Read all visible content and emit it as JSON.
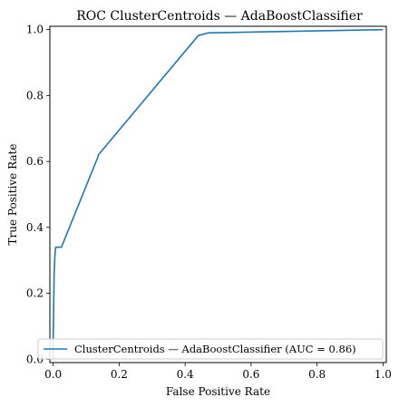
{
  "chart_data": {
    "type": "line",
    "title": "ROC ClusterCentroids — AdaBoostClassifier",
    "xlabel": "False Positive Rate",
    "ylabel": "True Positive Rate",
    "xlim": [
      -0.01,
      1.01
    ],
    "ylim": [
      -0.01,
      1.01
    ],
    "xticks": [
      0.0,
      0.2,
      0.4,
      0.6,
      0.8,
      1.0
    ],
    "xtick_labels": [
      "0.0",
      "0.2",
      "0.4",
      "0.6",
      "0.8",
      "1.0"
    ],
    "yticks": [
      0.0,
      0.2,
      0.4,
      0.6,
      0.8,
      1.0
    ],
    "ytick_labels": [
      "0.0",
      "0.2",
      "0.4",
      "0.6",
      "0.8",
      "1.0"
    ],
    "grid": false,
    "legend_position": "lower-right",
    "series": [
      {
        "name": "ClusterCentroids — AdaBoostClassifier (AUC = 0.86)",
        "color": "#1f77b4",
        "x": [
          0.0,
          0.0,
          0.003,
          0.005,
          0.007,
          0.008,
          0.025,
          0.135,
          0.137,
          0.44,
          0.47,
          1.0
        ],
        "y": [
          0.0,
          0.06,
          0.26,
          0.31,
          0.335,
          0.34,
          0.34,
          0.612,
          0.62,
          0.982,
          0.99,
          1.0
        ]
      }
    ]
  }
}
